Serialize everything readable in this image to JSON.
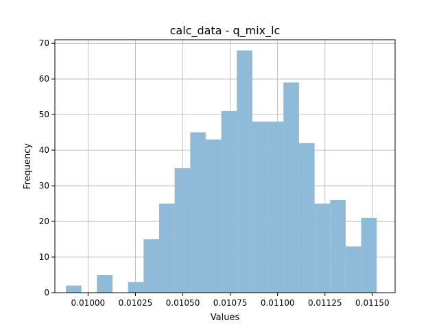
{
  "chart_data": {
    "type": "bar",
    "title": "calc_data - q_mix_lc",
    "xlabel": "Values",
    "ylabel": "Frequency",
    "bar_color": "#8fbbd9",
    "grid": true,
    "xlim": [
      0.009825,
      0.01162
    ],
    "ylim": [
      0,
      71
    ],
    "xticks": [
      0.01,
      0.01025,
      0.0105,
      0.01075,
      0.011,
      0.01125,
      0.0115
    ],
    "xtick_labels": [
      "0.01000",
      "0.01025",
      "0.01050",
      "0.01075",
      "0.01100",
      "0.01125",
      "0.01150"
    ],
    "yticks": [
      0,
      10,
      20,
      30,
      40,
      50,
      60,
      70
    ],
    "ytick_labels": [
      "0",
      "10",
      "20",
      "30",
      "40",
      "50",
      "60",
      "70"
    ],
    "bins": [
      {
        "start": 0.009883,
        "end": 0.009965,
        "count": 2
      },
      {
        "start": 0.009965,
        "end": 0.010047,
        "count": 0
      },
      {
        "start": 0.010047,
        "end": 0.010129,
        "count": 5
      },
      {
        "start": 0.010129,
        "end": 0.010211,
        "count": 0
      },
      {
        "start": 0.010211,
        "end": 0.010293,
        "count": 3
      },
      {
        "start": 0.010293,
        "end": 0.010375,
        "count": 15
      },
      {
        "start": 0.010375,
        "end": 0.010457,
        "count": 25
      },
      {
        "start": 0.010457,
        "end": 0.010539,
        "count": 35
      },
      {
        "start": 0.010539,
        "end": 0.010621,
        "count": 45
      },
      {
        "start": 0.010621,
        "end": 0.010703,
        "count": 43
      },
      {
        "start": 0.010703,
        "end": 0.010785,
        "count": 51
      },
      {
        "start": 0.010785,
        "end": 0.010867,
        "count": 68
      },
      {
        "start": 0.010867,
        "end": 0.010949,
        "count": 48
      },
      {
        "start": 0.010949,
        "end": 0.011031,
        "count": 48
      },
      {
        "start": 0.011031,
        "end": 0.011113,
        "count": 59
      },
      {
        "start": 0.011113,
        "end": 0.011195,
        "count": 42
      },
      {
        "start": 0.011195,
        "end": 0.011277,
        "count": 25
      },
      {
        "start": 0.011277,
        "end": 0.011359,
        "count": 26
      },
      {
        "start": 0.011359,
        "end": 0.011441,
        "count": 13
      },
      {
        "start": 0.011441,
        "end": 0.011523,
        "count": 21
      }
    ]
  }
}
